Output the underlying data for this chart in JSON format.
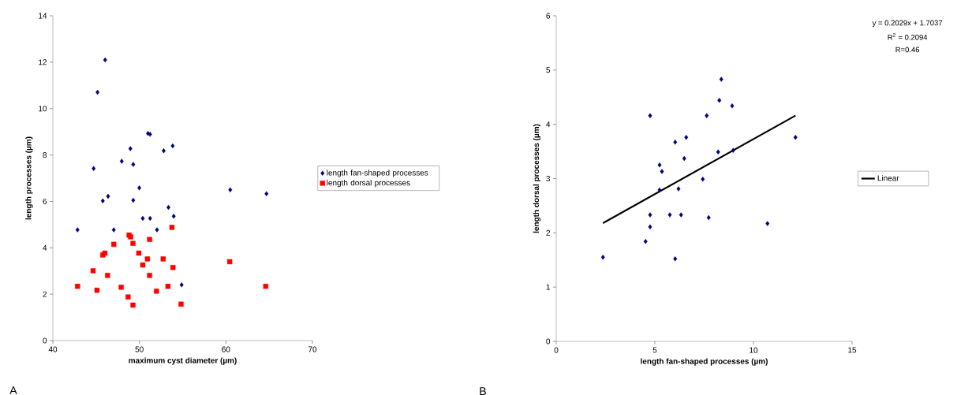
{
  "chart_data": [
    {
      "type": "scatter",
      "xlabel": "maximum cyst diameter (µm)",
      "ylabel": "length processes (µm)",
      "annotations": [
        "A"
      ],
      "xlim": [
        40,
        70
      ],
      "ylim": [
        0,
        14
      ],
      "xticks": [
        40,
        50,
        60,
        70
      ],
      "yticks": [
        0,
        2,
        4,
        6,
        8,
        10,
        12,
        14
      ],
      "legend": "right",
      "grid": false,
      "series": [
        {
          "name": "length fan-shaped processes",
          "color": "#000080",
          "marker": "diamond",
          "x": [
            46.04,
            45.16,
            44.71,
            48.96,
            47.96,
            49.29,
            50.99,
            51.24,
            52.81,
            53.85,
            49.99,
            60.5,
            64.69,
            46.38,
            45.77,
            49.29,
            42.85,
            47.04,
            50.39,
            51.24,
            53.36,
            53.97,
            52.03,
            54.88
          ],
          "values": [
            12.1,
            10.7,
            7.42,
            8.27,
            7.73,
            7.59,
            8.93,
            8.89,
            8.18,
            8.39,
            6.58,
            6.5,
            6.33,
            6.22,
            6.02,
            6.05,
            4.77,
            4.77,
            5.27,
            5.27,
            5.74,
            5.36,
            4.77,
            2.4
          ]
        },
        {
          "name": "length dorsal processes",
          "color": "#ff0000",
          "marker": "square",
          "x": [
            42.85,
            44.65,
            45.1,
            45.77,
            46.01,
            46.32,
            47.04,
            47.9,
            48.69,
            48.81,
            48.99,
            49.26,
            49.26,
            49.93,
            50.39,
            50.93,
            51.18,
            51.18,
            51.97,
            52.75,
            53.3,
            53.76,
            53.88,
            54.82,
            60.44,
            64.6
          ],
          "values": [
            2.34,
            3.01,
            2.17,
            3.69,
            3.77,
            2.81,
            4.15,
            2.3,
            1.88,
            4.55,
            4.47,
            4.19,
            1.53,
            3.77,
            3.26,
            3.52,
            4.36,
            2.81,
            2.13,
            3.52,
            2.34,
            4.88,
            3.15,
            1.57,
            3.4,
            2.34
          ]
        }
      ]
    },
    {
      "type": "scatter",
      "xlabel": "length fan-shaped processes (µm)",
      "ylabel": "length dorsal processes (µm)",
      "annotations": [
        "B",
        "y = 0.2029x + 1.7037",
        "R$^{2}$ = 0.2094",
        "R=0.46"
      ],
      "xlim": [
        0,
        15
      ],
      "ylim": [
        0,
        6
      ],
      "xticks": [
        0,
        5,
        10,
        15
      ],
      "yticks": [
        0,
        1,
        2,
        3,
        4,
        5,
        6
      ],
      "legend": "right",
      "grid": false,
      "series": [
        {
          "color": "#000080",
          "marker": "diamond",
          "x": [
            4.76,
            8.37,
            8.27,
            8.92,
            7.63,
            12.13,
            6.59,
            6.03,
            6.49,
            8.21,
            8.97,
            5.24,
            5.36,
            7.43,
            5.24,
            6.2,
            4.76,
            5.76,
            6.33,
            7.73,
            10.71,
            4.76,
            4.53,
            2.37,
            6.03
          ],
          "values": [
            4.16,
            4.83,
            4.44,
            4.34,
            4.16,
            3.76,
            3.76,
            3.67,
            3.37,
            3.49,
            3.52,
            3.25,
            3.13,
            2.99,
            2.79,
            2.81,
            2.33,
            2.33,
            2.33,
            2.28,
            2.17,
            2.11,
            1.84,
            1.55,
            1.52
          ]
        },
        {
          "type": "line",
          "name": "Linear",
          "color": "#000000",
          "marker": "none",
          "line_style": "solid",
          "x": [
            2.37,
            12.13
          ],
          "values": [
            2.18,
            4.16
          ]
        }
      ]
    }
  ]
}
